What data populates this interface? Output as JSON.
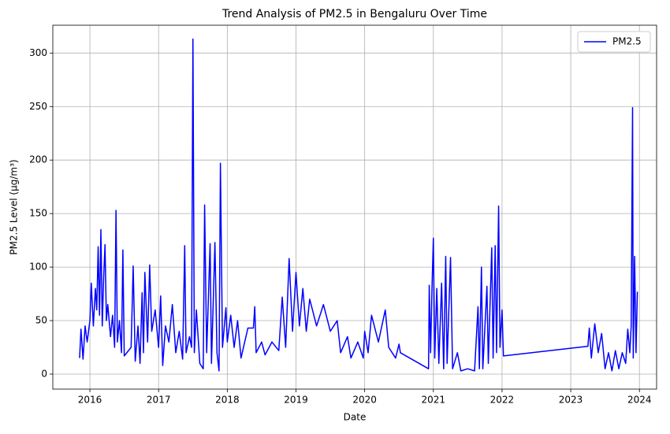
{
  "chart_data": {
    "type": "line",
    "title": "Trend Analysis of PM2.5 in Bengaluru Over Time",
    "xlabel": "Date",
    "ylabel": "PM2.5 Level (μg/m³)",
    "x": [
      2015.85,
      2015.87,
      2015.9,
      2015.93,
      2015.96,
      2016.0,
      2016.02,
      2016.05,
      2016.08,
      2016.1,
      2016.12,
      2016.14,
      2016.16,
      2016.18,
      2016.2,
      2016.22,
      2016.24,
      2016.26,
      2016.3,
      2016.33,
      2016.36,
      2016.38,
      2016.4,
      2016.43,
      2016.46,
      2016.48,
      2016.5,
      2016.6,
      2016.63,
      2016.66,
      2016.7,
      2016.73,
      2016.76,
      2016.78,
      2016.8,
      2016.84,
      2016.87,
      2016.9,
      2016.95,
      2017.0,
      2017.03,
      2017.06,
      2017.1,
      2017.15,
      2017.2,
      2017.25,
      2017.3,
      2017.35,
      2017.38,
      2017.4,
      2017.45,
      2017.48,
      2017.5,
      2017.52,
      2017.55,
      2017.6,
      2017.65,
      2017.67,
      2017.7,
      2017.75,
      2017.77,
      2017.82,
      2017.85,
      2017.88,
      2017.9,
      2017.93,
      2017.98,
      2018.0,
      2018.05,
      2018.1,
      2018.15,
      2018.2,
      2018.3,
      2018.38,
      2018.4,
      2018.42,
      2018.5,
      2018.55,
      2018.65,
      2018.75,
      2018.8,
      2018.85,
      2018.9,
      2018.95,
      2019.0,
      2019.05,
      2019.1,
      2019.15,
      2019.2,
      2019.3,
      2019.4,
      2019.5,
      2019.6,
      2019.65,
      2019.75,
      2019.8,
      2019.9,
      2019.98,
      2020.0,
      2020.05,
      2020.1,
      2020.2,
      2020.3,
      2020.35,
      2020.45,
      2020.5,
      2020.52,
      2020.93,
      2020.94,
      2020.96,
      2020.98,
      2021.0,
      2021.02,
      2021.05,
      2021.08,
      2021.12,
      2021.15,
      2021.18,
      2021.2,
      2021.25,
      2021.28,
      2021.35,
      2021.4,
      2021.5,
      2021.6,
      2021.65,
      2021.67,
      2021.7,
      2021.72,
      2021.78,
      2021.8,
      2021.85,
      2021.87,
      2021.9,
      2021.92,
      2021.95,
      2021.97,
      2022.0,
      2022.02,
      2023.25,
      2023.27,
      2023.3,
      2023.35,
      2023.4,
      2023.45,
      2023.5,
      2023.55,
      2023.6,
      2023.65,
      2023.7,
      2023.75,
      2023.8,
      2023.83,
      2023.86,
      2023.88,
      2023.9,
      2023.91,
      2023.93,
      2023.95,
      2023.97
    ],
    "series": [
      {
        "name": "PM2.5",
        "color": "#0000ff",
        "values": [
          15,
          42,
          14,
          45,
          30,
          50,
          85,
          45,
          80,
          60,
          119,
          55,
          135,
          45,
          90,
          121,
          50,
          65,
          35,
          55,
          25,
          153,
          30,
          50,
          20,
          116,
          17,
          25,
          101,
          12,
          45,
          10,
          76,
          20,
          95,
          30,
          102,
          40,
          60,
          25,
          73,
          8,
          45,
          30,
          65,
          20,
          40,
          14,
          120,
          20,
          35,
          25,
          313,
          20,
          60,
          10,
          5,
          158,
          20,
          122,
          10,
          123,
          20,
          3,
          197,
          25,
          62,
          30,
          55,
          25,
          50,
          15,
          43,
          43,
          63,
          20,
          30,
          18,
          30,
          22,
          72,
          25,
          108,
          40,
          95,
          45,
          80,
          40,
          70,
          45,
          65,
          40,
          50,
          20,
          35,
          15,
          30,
          15,
          40,
          20,
          55,
          30,
          60,
          25,
          15,
          28,
          20,
          5,
          83,
          20,
          80,
          127,
          15,
          80,
          10,
          85,
          5,
          110,
          10,
          109,
          5,
          20,
          3,
          5,
          3,
          63,
          5,
          100,
          5,
          82,
          10,
          118,
          15,
          120,
          20,
          157,
          25,
          60,
          17,
          26,
          43,
          15,
          47,
          20,
          38,
          5,
          20,
          3,
          22,
          5,
          20,
          10,
          42,
          20,
          45,
          249,
          15,
          110,
          20,
          77
        ]
      }
    ],
    "xlim": [
      2015.46,
      2024.25
    ],
    "ylim": [
      -14,
      326
    ],
    "xticks": [
      2016,
      2017,
      2018,
      2019,
      2020,
      2021,
      2022,
      2023,
      2024
    ],
    "yticks": [
      0,
      50,
      100,
      150,
      200,
      250,
      300
    ],
    "grid": true,
    "legend": "upper right"
  }
}
